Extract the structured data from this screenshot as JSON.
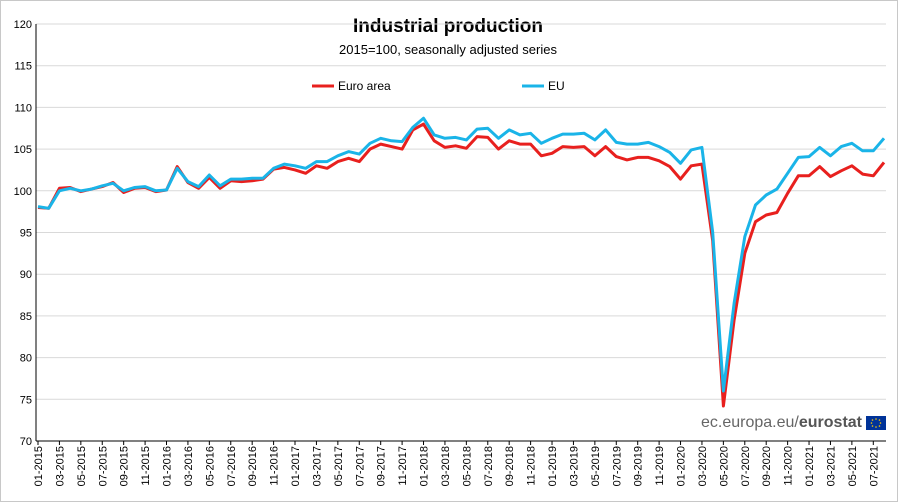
{
  "chart_data": {
    "type": "line",
    "title": "Industrial production",
    "subtitle": "2015=100, seasonally adjusted series",
    "xlabel": "",
    "ylabel": "",
    "ylim": [
      70,
      120
    ],
    "yticks": [
      70,
      75,
      80,
      85,
      90,
      95,
      100,
      105,
      110,
      115,
      120
    ],
    "grid": "horizontal",
    "legend_position": "top-center",
    "tick_labels": [
      "01-2015",
      "03-2015",
      "05-2015",
      "07-2015",
      "09-2015",
      "11-2015",
      "01-2016",
      "03-2016",
      "05-2016",
      "07-2016",
      "09-2016",
      "11-2016",
      "01-2017",
      "03-2017",
      "05-2017",
      "07-2017",
      "09-2017",
      "11-2017",
      "01-2018",
      "03-2018",
      "05-2018",
      "07-2018",
      "09-2018",
      "11-2018",
      "01-2019",
      "03-2019",
      "05-2019",
      "07-2019",
      "09-2019",
      "11-2019",
      "01-2020",
      "03-2020",
      "05-2020",
      "07-2020",
      "09-2020",
      "11-2020",
      "01-2021",
      "03-2021",
      "05-2021",
      "07-2021"
    ],
    "series": [
      {
        "name": "Euro area",
        "color": "#e8201e",
        "values": [
          98.0,
          97.9,
          100.3,
          100.4,
          99.9,
          100.2,
          100.5,
          101.0,
          99.8,
          100.3,
          100.4,
          99.9,
          100.1,
          102.9,
          101.0,
          100.3,
          101.6,
          100.3,
          101.2,
          101.1,
          101.2,
          101.4,
          102.6,
          102.8,
          102.5,
          102.1,
          103.0,
          102.7,
          103.5,
          103.9,
          103.5,
          105.0,
          105.6,
          105.3,
          105.0,
          107.3,
          108.0,
          106.0,
          105.2,
          105.4,
          105.1,
          106.5,
          106.4,
          105.0,
          106.0,
          105.6,
          105.6,
          104.2,
          104.5,
          105.3,
          105.2,
          105.3,
          104.2,
          105.3,
          104.1,
          103.7,
          104.0,
          104.0,
          103.6,
          102.9,
          101.4,
          103.0,
          103.2,
          94.0,
          74.2,
          84.5,
          92.5,
          96.3,
          97.1,
          97.4,
          99.7,
          101.8,
          101.8,
          102.9,
          101.7,
          102.4,
          103.0,
          102.0,
          101.8,
          103.4
        ]
      },
      {
        "name": "EU",
        "color": "#1ab4e8",
        "values": [
          98.1,
          97.9,
          100.0,
          100.3,
          100.0,
          100.2,
          100.6,
          100.9,
          100.0,
          100.4,
          100.5,
          100.0,
          100.1,
          102.7,
          101.1,
          100.5,
          101.9,
          100.6,
          101.4,
          101.4,
          101.5,
          101.5,
          102.7,
          103.2,
          103.0,
          102.7,
          103.5,
          103.5,
          104.2,
          104.7,
          104.4,
          105.7,
          106.3,
          106.0,
          105.9,
          107.6,
          108.7,
          106.7,
          106.3,
          106.4,
          106.1,
          107.4,
          107.5,
          106.3,
          107.3,
          106.7,
          106.9,
          105.7,
          106.3,
          106.8,
          106.8,
          106.9,
          106.1,
          107.3,
          105.8,
          105.6,
          105.6,
          105.8,
          105.3,
          104.6,
          103.3,
          104.9,
          105.2,
          95.0,
          76.0,
          86.5,
          94.5,
          98.3,
          99.5,
          100.2,
          102.1,
          104.0,
          104.1,
          105.2,
          104.2,
          105.3,
          105.7,
          104.8,
          104.8,
          106.3
        ]
      }
    ]
  },
  "branding": {
    "domain_text": "ec.europa.eu/",
    "name_text": "eurostat",
    "flag_icon": "eu-flag-icon"
  }
}
